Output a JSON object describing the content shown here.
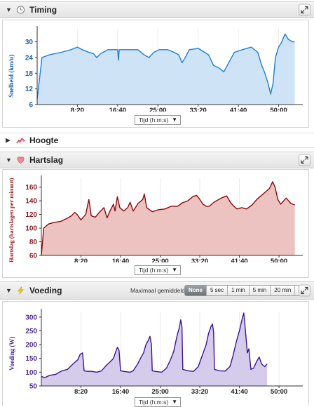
{
  "panels": {
    "timing": {
      "title": "Timing",
      "icon": "clock-icon",
      "ylabel": "Snelheid (km/u)",
      "color_line": "#1f7fd6",
      "color_fill": "#cfe3f7",
      "color_axis": "#1f5fa8"
    },
    "hoogte": {
      "title": "Hoogte",
      "icon": "elevation-icon"
    },
    "hartslag": {
      "title": "Hartslag",
      "icon": "heart-icon",
      "ylabel": "Hartslag (hartslagen per minuut)",
      "color_line": "#8b0a0a",
      "color_fill": "#ecc3c1",
      "color_axis": "#8b1a1a"
    },
    "voeding": {
      "title": "Voeding",
      "icon": "lightning-icon",
      "ylabel": "Voeding (W)",
      "color_line": "#3a1591",
      "color_fill": "#d5cceb",
      "color_axis": "#4b2a8f",
      "averaging": {
        "label": "Maximaal gemiddeld:",
        "options": [
          "None",
          "5 sec",
          "1 min",
          "5 min",
          "20 min"
        ],
        "selected": "None"
      }
    }
  },
  "x_axis": {
    "dropdown_label": "Tijd (h:m:s)",
    "ticks": [
      "8:20",
      "16:40",
      "25:00",
      "33:20",
      "41:40",
      "50:00"
    ]
  },
  "chart_data": [
    {
      "type": "area",
      "name": "speed",
      "ylabel": "Snelheid (km/u)",
      "x_ticks": [
        "8:20",
        "16:40",
        "25:00",
        "33:20",
        "41:40",
        "50:00"
      ],
      "y_ticks": [
        6,
        12,
        18,
        24,
        30
      ],
      "ylim": [
        6,
        35
      ],
      "xlim": [
        0,
        3300
      ],
      "points": [
        [
          0,
          8
        ],
        [
          60,
          24
        ],
        [
          150,
          25
        ],
        [
          300,
          26
        ],
        [
          420,
          27
        ],
        [
          500,
          28
        ],
        [
          560,
          27
        ],
        [
          640,
          26
        ],
        [
          700,
          25.5
        ],
        [
          740,
          24
        ],
        [
          790,
          25.5
        ],
        [
          880,
          27
        ],
        [
          950,
          27
        ],
        [
          1000,
          27
        ],
        [
          1010,
          23
        ],
        [
          1020,
          27
        ],
        [
          1100,
          27
        ],
        [
          1250,
          27
        ],
        [
          1330,
          25
        ],
        [
          1390,
          24
        ],
        [
          1450,
          26
        ],
        [
          1520,
          27
        ],
        [
          1620,
          27
        ],
        [
          1700,
          26
        ],
        [
          1760,
          25
        ],
        [
          1800,
          22
        ],
        [
          1840,
          24
        ],
        [
          1890,
          27
        ],
        [
          2000,
          27.5
        ],
        [
          2080,
          26
        ],
        [
          2130,
          25
        ],
        [
          2190,
          21
        ],
        [
          2260,
          20
        ],
        [
          2320,
          18.5
        ],
        [
          2380,
          22
        ],
        [
          2450,
          26
        ],
        [
          2550,
          27
        ],
        [
          2660,
          28
        ],
        [
          2740,
          26
        ],
        [
          2790,
          21
        ],
        [
          2830,
          18
        ],
        [
          2870,
          14
        ],
        [
          2900,
          10
        ],
        [
          2930,
          14
        ],
        [
          2960,
          24
        ],
        [
          3000,
          28
        ],
        [
          3040,
          30
        ],
        [
          3080,
          33
        ],
        [
          3120,
          31
        ],
        [
          3170,
          30
        ],
        [
          3200,
          30
        ]
      ]
    },
    {
      "type": "area",
      "name": "heart_rate",
      "ylabel": "Hartslag (hartslagen per minuut)",
      "x_ticks": [
        "8:20",
        "16:40",
        "25:00",
        "33:20",
        "41:40",
        "50:00"
      ],
      "y_ticks": [
        60,
        80,
        100,
        120,
        140,
        160
      ],
      "ylim": [
        60,
        173
      ],
      "xlim": [
        0,
        3300
      ],
      "points": [
        [
          0,
          60
        ],
        [
          30,
          100
        ],
        [
          90,
          106
        ],
        [
          150,
          108
        ],
        [
          250,
          110
        ],
        [
          320,
          114
        ],
        [
          380,
          118
        ],
        [
          420,
          123
        ],
        [
          450,
          120
        ],
        [
          500,
          112
        ],
        [
          560,
          120
        ],
        [
          600,
          142
        ],
        [
          630,
          118
        ],
        [
          680,
          116
        ],
        [
          740,
          124
        ],
        [
          790,
          130
        ],
        [
          830,
          115
        ],
        [
          870,
          126
        ],
        [
          910,
          135
        ],
        [
          930,
          125
        ],
        [
          960,
          146
        ],
        [
          990,
          130
        ],
        [
          1040,
          125
        ],
        [
          1090,
          130
        ],
        [
          1120,
          138
        ],
        [
          1160,
          125
        ],
        [
          1220,
          136
        ],
        [
          1280,
          142
        ],
        [
          1300,
          150
        ],
        [
          1330,
          130
        ],
        [
          1400,
          124
        ],
        [
          1480,
          127
        ],
        [
          1560,
          128
        ],
        [
          1640,
          132
        ],
        [
          1720,
          132
        ],
        [
          1780,
          137
        ],
        [
          1850,
          140
        ],
        [
          1910,
          146
        ],
        [
          1960,
          148
        ],
        [
          2000,
          142
        ],
        [
          2040,
          135
        ],
        [
          2080,
          132
        ],
        [
          2120,
          132
        ],
        [
          2180,
          138
        ],
        [
          2240,
          142
        ],
        [
          2290,
          145
        ],
        [
          2340,
          147
        ],
        [
          2390,
          137
        ],
        [
          2430,
          132
        ],
        [
          2470,
          128
        ],
        [
          2530,
          130
        ],
        [
          2590,
          128
        ],
        [
          2660,
          134
        ],
        [
          2720,
          142
        ],
        [
          2780,
          148
        ],
        [
          2840,
          154
        ],
        [
          2880,
          158
        ],
        [
          2920,
          168
        ],
        [
          2950,
          160
        ],
        [
          2985,
          142
        ],
        [
          3020,
          135
        ],
        [
          3060,
          140
        ],
        [
          3090,
          144
        ],
        [
          3120,
          140
        ],
        [
          3150,
          136
        ],
        [
          3200,
          134
        ]
      ]
    },
    {
      "type": "area",
      "name": "power",
      "ylabel": "Voeding (W)",
      "x_ticks": [
        "8:20",
        "16:40",
        "25:00",
        "33:20",
        "41:40",
        "50:00"
      ],
      "y_ticks": [
        50,
        100,
        150,
        200,
        250,
        300
      ],
      "ylim": [
        50,
        320
      ],
      "xlim": [
        0,
        3300
      ],
      "points": [
        [
          0,
          85
        ],
        [
          40,
          80
        ],
        [
          100,
          88
        ],
        [
          180,
          92
        ],
        [
          260,
          105
        ],
        [
          330,
          110
        ],
        [
          380,
          125
        ],
        [
          420,
          135
        ],
        [
          460,
          145
        ],
        [
          490,
          165
        ],
        [
          520,
          170
        ],
        [
          540,
          105
        ],
        [
          580,
          103
        ],
        [
          640,
          103
        ],
        [
          700,
          100
        ],
        [
          760,
          105
        ],
        [
          820,
          125
        ],
        [
          870,
          138
        ],
        [
          910,
          150
        ],
        [
          940,
          175
        ],
        [
          960,
          190
        ],
        [
          980,
          180
        ],
        [
          1000,
          105
        ],
        [
          1060,
          102
        ],
        [
          1120,
          100
        ],
        [
          1160,
          105
        ],
        [
          1220,
          132
        ],
        [
          1260,
          155
        ],
        [
          1290,
          170
        ],
        [
          1320,
          200
        ],
        [
          1350,
          215
        ],
        [
          1370,
          230
        ],
        [
          1390,
          200
        ],
        [
          1400,
          105
        ],
        [
          1460,
          102
        ],
        [
          1520,
          100
        ],
        [
          1580,
          115
        ],
        [
          1630,
          145
        ],
        [
          1670,
          175
        ],
        [
          1700,
          215
        ],
        [
          1720,
          240
        ],
        [
          1740,
          260
        ],
        [
          1760,
          290
        ],
        [
          1775,
          265
        ],
        [
          1785,
          110
        ],
        [
          1850,
          105
        ],
        [
          1920,
          103
        ],
        [
          1980,
          120
        ],
        [
          2030,
          160
        ],
        [
          2080,
          200
        ],
        [
          2110,
          240
        ],
        [
          2140,
          265
        ],
        [
          2160,
          275
        ],
        [
          2175,
          245
        ],
        [
          2185,
          110
        ],
        [
          2250,
          105
        ],
        [
          2320,
          104
        ],
        [
          2380,
          120
        ],
        [
          2420,
          160
        ],
        [
          2460,
          210
        ],
        [
          2500,
          250
        ],
        [
          2520,
          275
        ],
        [
          2540,
          300
        ],
        [
          2555,
          315
        ],
        [
          2570,
          270
        ],
        [
          2600,
          170
        ],
        [
          2620,
          185
        ],
        [
          2645,
          110
        ],
        [
          2680,
          115
        ],
        [
          2720,
          140
        ],
        [
          2750,
          155
        ],
        [
          2780,
          130
        ],
        [
          2820,
          120
        ],
        [
          2850,
          130
        ]
      ]
    }
  ]
}
